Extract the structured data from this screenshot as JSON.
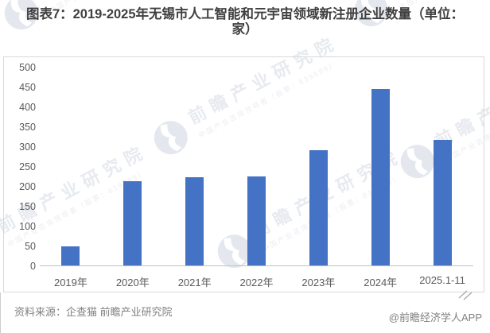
{
  "page": {
    "title_display": "图表7：2019-2025年无锡市人工智能和元宇宙领域新注册企业数量（单位：\n家）",
    "source_line": "资料来源：企查猫  前瞻产业研究院",
    "credit": "@前瞻经济学人APP"
  },
  "chart_data": {
    "type": "bar",
    "title": "2019-2025年无锡市人工智能和元宇宙领域新注册企业数量",
    "unit": "家",
    "categories": [
      "2019年",
      "2020年",
      "2021年",
      "2022年",
      "2023年",
      "2024年",
      "2025.1-11"
    ],
    "values": [
      48,
      212,
      222,
      225,
      290,
      445,
      317
    ],
    "xlabel": "",
    "ylabel": "",
    "ylim": [
      0,
      500
    ],
    "ytick_step": 50,
    "grid": false,
    "legend": false,
    "bar_color": "#4472c4"
  },
  "watermark": {
    "text": "前瞻产业研究院",
    "subtext": "中国产业咨询领导者（股票：839599）",
    "logo_icon": "qianzhan-logo"
  },
  "colors": {
    "bar": "#4472c4",
    "title_text": "#3f3f3f",
    "axis_text": "#595959",
    "chart_border": "#d9d9d9",
    "axis_line": "#bfbfbf",
    "footer_text": "#808080",
    "watermark_text": "#d6dbe5"
  }
}
